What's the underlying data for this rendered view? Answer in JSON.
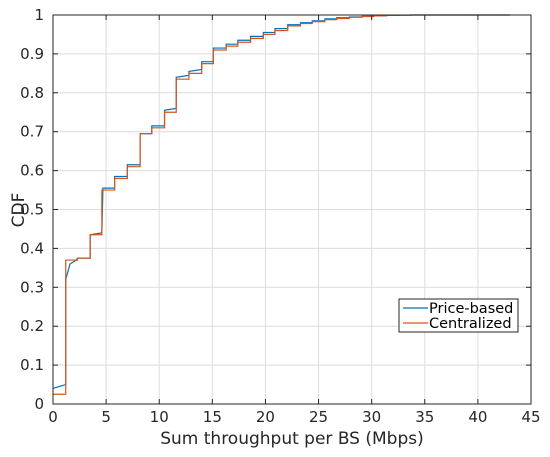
{
  "chart_data": {
    "type": "line",
    "title": "",
    "xlabel": "Sum throughput per BS (Mbps)",
    "ylabel": "CDF",
    "xlim": [
      0,
      45
    ],
    "ylim": [
      0,
      1
    ],
    "xticks": [
      0,
      5,
      10,
      15,
      20,
      25,
      30,
      35,
      40,
      45
    ],
    "yticks": [
      0,
      0.1,
      0.2,
      0.3,
      0.4,
      0.5,
      0.6,
      0.7,
      0.8,
      0.9,
      1
    ],
    "xtick_labels": [
      "0",
      "5",
      "10",
      "15",
      "20",
      "25",
      "30",
      "35",
      "40",
      "45"
    ],
    "ytick_labels": [
      "0",
      "0.1",
      "0.2",
      "0.3",
      "0.4",
      "0.5",
      "0.6",
      "0.7",
      "0.8",
      "0.9",
      "1"
    ],
    "grid": true,
    "legend_position": "lower-right",
    "series": [
      {
        "name": "Price-based",
        "color": "#0072BD",
        "x": [
          0,
          1.2,
          1.2,
          1.6,
          2.2,
          2.3,
          3.5,
          3.5,
          4.6,
          4.7,
          5.8,
          5.8,
          7.0,
          7.0,
          8.2,
          8.2,
          9.3,
          9.3,
          10.5,
          10.5,
          11.6,
          11.6,
          12.8,
          12.8,
          14.0,
          14.0,
          15.1,
          15.1,
          16.3,
          16.3,
          17.4,
          17.4,
          18.6,
          18.6,
          19.8,
          19.8,
          20.9,
          20.9,
          22.1,
          22.1,
          23.3,
          23.3,
          24.4,
          24.4,
          25.6,
          25.6,
          26.7,
          26.7,
          27.9,
          27.9,
          29.1,
          29.1,
          30.2,
          30.2,
          31.4,
          31.4,
          32.6,
          32.6,
          33.7,
          33.7,
          34.9,
          34.9,
          43.0
        ],
        "y": [
          0.04,
          0.05,
          0.32,
          0.36,
          0.37,
          0.375,
          0.375,
          0.435,
          0.44,
          0.555,
          0.555,
          0.585,
          0.585,
          0.615,
          0.615,
          0.695,
          0.695,
          0.715,
          0.715,
          0.755,
          0.76,
          0.84,
          0.845,
          0.855,
          0.86,
          0.88,
          0.88,
          0.915,
          0.915,
          0.925,
          0.925,
          0.935,
          0.935,
          0.945,
          0.945,
          0.955,
          0.955,
          0.965,
          0.965,
          0.975,
          0.975,
          0.98,
          0.98,
          0.985,
          0.985,
          0.99,
          0.99,
          0.993,
          0.993,
          0.995,
          0.995,
          0.997,
          0.997,
          0.998,
          0.998,
          0.999,
          0.999,
          0.9995,
          0.9995,
          1.0,
          1.0,
          1.0,
          1.0
        ]
      },
      {
        "name": "Centralized",
        "color": "#D95319",
        "x": [
          0,
          1.2,
          1.2,
          2.3,
          2.3,
          3.5,
          3.5,
          4.6,
          4.6,
          5.8,
          5.8,
          7.0,
          7.0,
          8.2,
          8.2,
          9.3,
          9.3,
          10.5,
          10.5,
          11.6,
          11.6,
          12.8,
          12.8,
          14.0,
          14.0,
          15.1,
          15.1,
          16.3,
          16.3,
          17.4,
          17.4,
          18.6,
          18.6,
          19.8,
          19.8,
          20.9,
          20.9,
          22.1,
          22.1,
          23.3,
          23.3,
          24.4,
          24.4,
          25.6,
          25.6,
          26.7,
          26.7,
          27.9,
          27.9,
          29.1,
          29.1,
          30.2,
          30.2,
          31.4,
          31.4,
          32.6,
          32.6,
          33.7,
          33.7,
          34.9,
          34.9,
          43.0
        ],
        "y": [
          0.025,
          0.025,
          0.37,
          0.37,
          0.375,
          0.375,
          0.435,
          0.435,
          0.55,
          0.55,
          0.58,
          0.58,
          0.61,
          0.61,
          0.695,
          0.695,
          0.71,
          0.71,
          0.75,
          0.75,
          0.835,
          0.835,
          0.85,
          0.85,
          0.875,
          0.875,
          0.91,
          0.91,
          0.92,
          0.92,
          0.93,
          0.93,
          0.94,
          0.94,
          0.95,
          0.95,
          0.96,
          0.96,
          0.972,
          0.972,
          0.978,
          0.978,
          0.983,
          0.983,
          0.988,
          0.988,
          0.991,
          0.991,
          0.994,
          0.994,
          0.996,
          0.996,
          0.998,
          0.998,
          0.999,
          0.999,
          0.9995,
          0.9995,
          1.0,
          1.0,
          1.0,
          1.0
        ]
      }
    ]
  }
}
